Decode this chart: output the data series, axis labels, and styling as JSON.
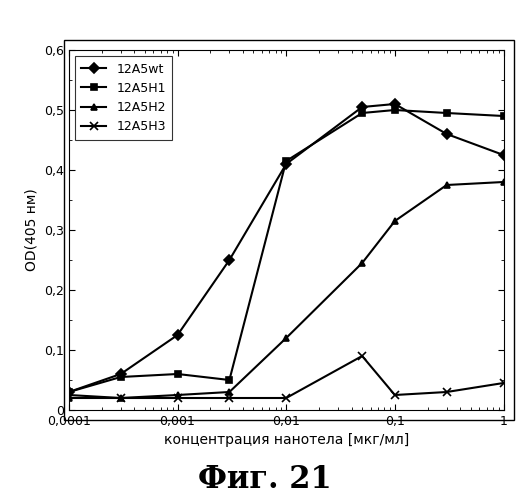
{
  "series": {
    "12A5wt": {
      "x": [
        0.0001,
        0.0003,
        0.001,
        0.003,
        0.01,
        0.05,
        0.1,
        0.3,
        1.0
      ],
      "y": [
        0.03,
        0.06,
        0.125,
        0.25,
        0.41,
        0.505,
        0.51,
        0.46,
        0.425
      ],
      "marker": "D",
      "markersize": 5
    },
    "12A5H1": {
      "x": [
        0.0001,
        0.0003,
        0.001,
        0.003,
        0.01,
        0.05,
        0.1,
        0.3,
        1.0
      ],
      "y": [
        0.03,
        0.055,
        0.06,
        0.05,
        0.415,
        0.495,
        0.5,
        0.495,
        0.49
      ],
      "marker": "s",
      "markersize": 5
    },
    "12A5H2": {
      "x": [
        0.0001,
        0.0003,
        0.001,
        0.003,
        0.01,
        0.05,
        0.1,
        0.3,
        1.0
      ],
      "y": [
        0.02,
        0.02,
        0.025,
        0.03,
        0.12,
        0.245,
        0.315,
        0.375,
        0.38
      ],
      "marker": "^",
      "markersize": 5
    },
    "12A5H3": {
      "x": [
        0.0001,
        0.0003,
        0.001,
        0.003,
        0.01,
        0.05,
        0.1,
        0.3,
        1.0
      ],
      "y": [
        0.025,
        0.02,
        0.02,
        0.02,
        0.02,
        0.09,
        0.025,
        0.03,
        0.045
      ],
      "marker": "x",
      "markersize": 6
    }
  },
  "xlabel": "концентрация нанотела [мкг/мл]",
  "ylabel": "OD(405 нм)",
  "ylim": [
    0,
    0.6
  ],
  "yticks": [
    0.0,
    0.1,
    0.2,
    0.3,
    0.4,
    0.5,
    0.6
  ],
  "ytick_labels": [
    "0",
    "0,1",
    "0,2",
    "0,3",
    "0,4",
    "0,5",
    "0,6"
  ],
  "xlim": [
    0.0001,
    1.0
  ],
  "xtick_positions": [
    0.0001,
    0.001,
    0.01,
    0.1,
    1.0
  ],
  "xtick_labels": [
    "0,0001",
    "0,001",
    "0,01",
    "0,1",
    "1"
  ],
  "figure_title": "Фиг. 21",
  "background_color": "#ffffff",
  "line_color": "#000000",
  "linewidth": 1.5,
  "legend_order": [
    "12A5wt",
    "12A5H1",
    "12A5H2",
    "12A5H3"
  ],
  "legend_fontsize": 9,
  "axis_fontsize": 9,
  "title_fontsize": 22
}
